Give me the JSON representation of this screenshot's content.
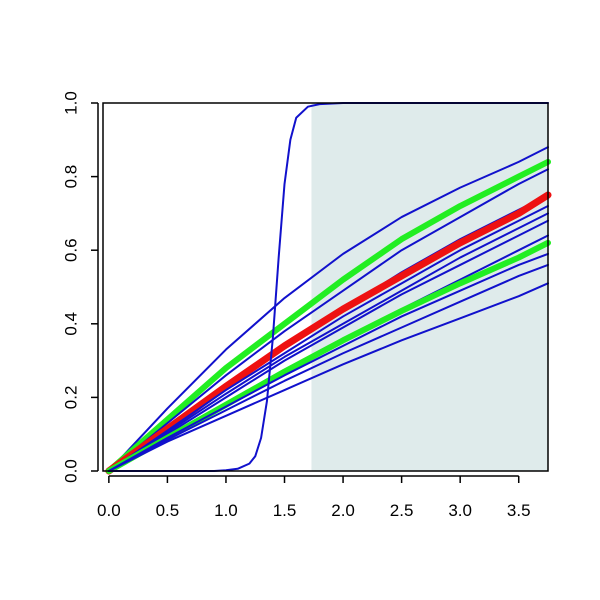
{
  "chart_data": {
    "type": "line",
    "title": "",
    "xlabel": "",
    "ylabel": "",
    "xlim": [
      -0.05,
      3.75
    ],
    "ylim": [
      0,
      1.0
    ],
    "x_ticks": [
      0.0,
      0.5,
      1.0,
      1.5,
      2.0,
      2.5,
      3.0,
      3.5
    ],
    "x_tick_labels": [
      "0.0",
      "0.5",
      "1.0",
      "1.5",
      "2.0",
      "2.5",
      "3.0",
      "3.5"
    ],
    "y_ticks": [
      0.0,
      0.2,
      0.4,
      0.6,
      0.8,
      1.0
    ],
    "y_tick_labels": [
      "0.0",
      "0.2",
      "0.4",
      "0.6",
      "0.8",
      "1.0"
    ],
    "grid": false,
    "legend": "none",
    "shaded_region": {
      "x": [
        1.73,
        3.75
      ],
      "y": [
        0,
        1.0
      ],
      "color": "#dfebeb"
    },
    "series": [
      {
        "color": "#1111cc",
        "width": 2,
        "x": [
          0,
          0.5,
          1.0,
          1.5,
          2.0,
          2.5,
          3.0,
          3.5,
          3.75
        ],
        "y": [
          0,
          0.17,
          0.33,
          0.47,
          0.59,
          0.69,
          0.77,
          0.84,
          0.88
        ]
      },
      {
        "color": "#22ee22",
        "width": 6,
        "x": [
          0,
          0.5,
          1.0,
          1.5,
          2.0,
          2.5,
          3.0,
          3.5,
          3.75
        ],
        "y": [
          0,
          0.14,
          0.28,
          0.4,
          0.52,
          0.63,
          0.72,
          0.8,
          0.84
        ]
      },
      {
        "color": "#1111cc",
        "width": 2,
        "x": [
          0,
          0.5,
          1.0,
          1.5,
          2.0,
          2.5,
          3.0,
          3.5,
          3.75
        ],
        "y": [
          0,
          0.13,
          0.26,
          0.38,
          0.49,
          0.6,
          0.69,
          0.78,
          0.82
        ]
      },
      {
        "color": "#1111cc",
        "width": 2,
        "x": [
          0,
          0.5,
          1.0,
          1.5,
          2.0,
          2.5,
          3.0,
          3.5,
          3.75
        ],
        "y": [
          0,
          0.12,
          0.23,
          0.34,
          0.44,
          0.54,
          0.63,
          0.71,
          0.75
        ]
      },
      {
        "color": "#ee1111",
        "width": 7,
        "x": [
          0,
          0.5,
          1.0,
          1.5,
          2.0,
          2.5,
          3.0,
          3.5,
          3.75
        ],
        "y": [
          0,
          0.115,
          0.23,
          0.34,
          0.44,
          0.53,
          0.62,
          0.7,
          0.75
        ]
      },
      {
        "color": "#1111cc",
        "width": 2,
        "x": [
          0,
          0.5,
          1.0,
          1.5,
          2.0,
          2.5,
          3.0,
          3.5,
          3.75
        ],
        "y": [
          0,
          0.11,
          0.22,
          0.32,
          0.42,
          0.51,
          0.6,
          0.68,
          0.72
        ]
      },
      {
        "color": "#1111cc",
        "width": 2,
        "x": [
          0,
          0.5,
          1.0,
          1.5,
          2.0,
          2.5,
          3.0,
          3.5,
          3.75
        ],
        "y": [
          0,
          0.105,
          0.21,
          0.31,
          0.4,
          0.49,
          0.58,
          0.66,
          0.7
        ]
      },
      {
        "color": "#1111cc",
        "width": 2,
        "x": [
          0,
          0.5,
          1.0,
          1.5,
          2.0,
          2.5,
          3.0,
          3.5,
          3.75
        ],
        "y": [
          0,
          0.1,
          0.2,
          0.3,
          0.39,
          0.48,
          0.56,
          0.64,
          0.68
        ]
      },
      {
        "color": "#1111cc",
        "width": 2,
        "x": [
          0,
          0.5,
          1.0,
          1.5,
          2.0,
          2.5,
          3.0,
          3.5,
          3.75
        ],
        "y": [
          0,
          0.095,
          0.185,
          0.275,
          0.36,
          0.44,
          0.52,
          0.6,
          0.64
        ]
      },
      {
        "color": "#22ee22",
        "width": 6,
        "x": [
          0,
          0.5,
          1.0,
          1.5,
          2.0,
          2.5,
          3.0,
          3.5,
          3.75
        ],
        "y": [
          0,
          0.09,
          0.18,
          0.27,
          0.355,
          0.435,
          0.51,
          0.58,
          0.62
        ]
      },
      {
        "color": "#1111cc",
        "width": 2,
        "x": [
          0,
          0.5,
          1.0,
          1.5,
          2.0,
          2.5,
          3.0,
          3.5,
          3.75
        ],
        "y": [
          0,
          0.09,
          0.175,
          0.26,
          0.34,
          0.42,
          0.49,
          0.56,
          0.59
        ]
      },
      {
        "color": "#1111cc",
        "width": 2,
        "x": [
          0,
          0.5,
          1.0,
          1.5,
          2.0,
          2.5,
          3.0,
          3.5,
          3.75
        ],
        "y": [
          0,
          0.085,
          0.165,
          0.245,
          0.32,
          0.39,
          0.46,
          0.53,
          0.56
        ]
      },
      {
        "color": "#1111cc",
        "width": 2,
        "x": [
          0,
          0.5,
          1.0,
          1.5,
          2.0,
          2.5,
          3.0,
          3.5,
          3.75
        ],
        "y": [
          0,
          0.08,
          0.15,
          0.22,
          0.29,
          0.355,
          0.415,
          0.475,
          0.51
        ]
      },
      {
        "color": "#1111cc",
        "width": 2,
        "x": [
          0,
          0.9,
          1.0,
          1.1,
          1.2,
          1.25,
          1.3,
          1.35,
          1.4,
          1.45,
          1.5,
          1.55,
          1.6,
          1.7,
          1.8,
          2.0,
          2.5,
          3.0,
          3.75
        ],
        "y": [
          0,
          0,
          0.002,
          0.006,
          0.02,
          0.04,
          0.09,
          0.19,
          0.36,
          0.58,
          0.78,
          0.9,
          0.96,
          0.99,
          0.997,
          1.0,
          1.0,
          1.0,
          1.0
        ]
      }
    ]
  }
}
